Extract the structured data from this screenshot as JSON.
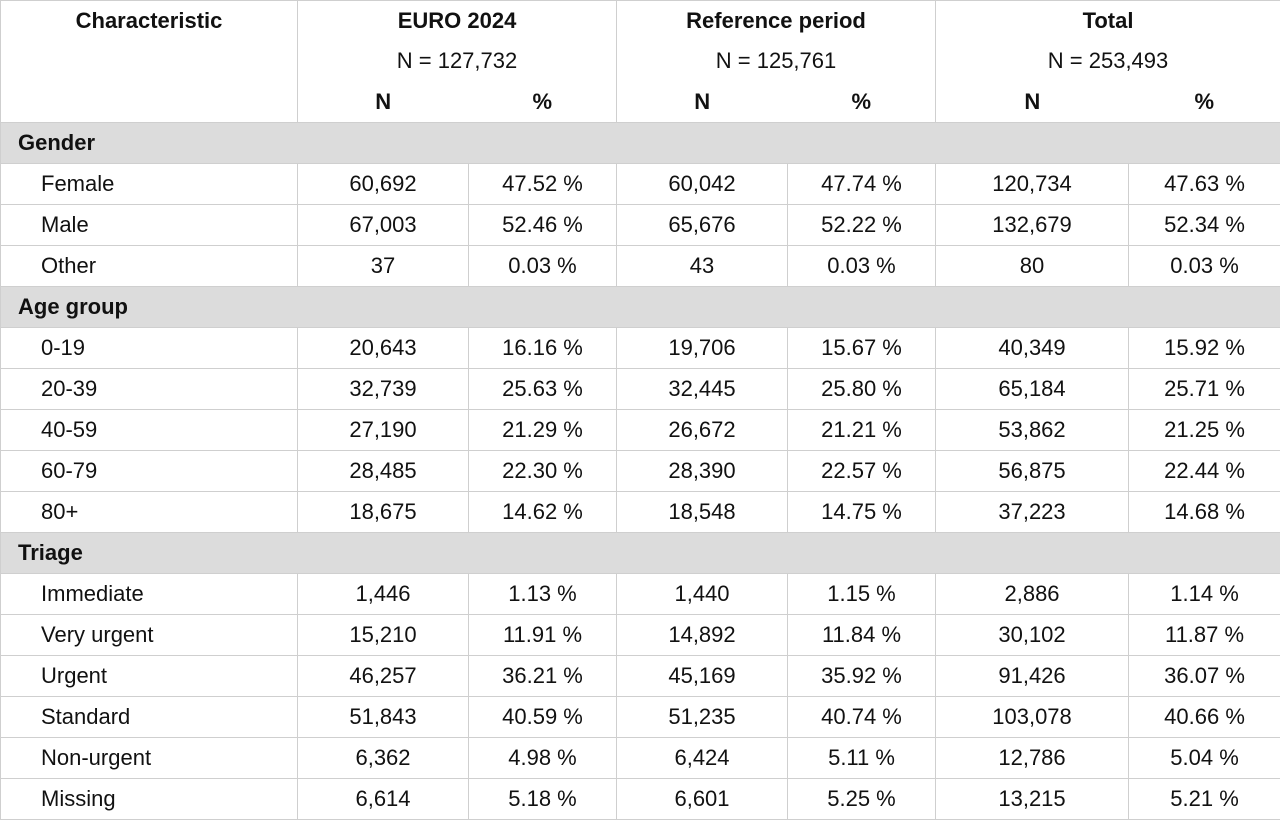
{
  "header": {
    "characteristic": "Characteristic",
    "groups": [
      {
        "title": "EURO 2024",
        "n": "N = 127,732"
      },
      {
        "title": "Reference period",
        "n": "N = 125,761"
      },
      {
        "title": "Total",
        "n": "N = 253,493"
      }
    ],
    "n_label": "N",
    "pct_label": "%"
  },
  "sections": [
    {
      "title": "Gender",
      "rows": [
        {
          "label": "Female",
          "values": [
            "60,692",
            "47.52 %",
            "60,042",
            "47.74 %",
            "120,734",
            "47.63 %"
          ]
        },
        {
          "label": "Male",
          "values": [
            "67,003",
            "52.46 %",
            "65,676",
            "52.22 %",
            "132,679",
            "52.34 %"
          ]
        },
        {
          "label": "Other",
          "values": [
            "37",
            "0.03 %",
            "43",
            "0.03 %",
            "80",
            "0.03 %"
          ]
        }
      ]
    },
    {
      "title": "Age group",
      "rows": [
        {
          "label": "0-19",
          "values": [
            "20,643",
            "16.16 %",
            "19,706",
            "15.67 %",
            "40,349",
            "15.92 %"
          ]
        },
        {
          "label": "20-39",
          "values": [
            "32,739",
            "25.63 %",
            "32,445",
            "25.80 %",
            "65,184",
            "25.71 %"
          ]
        },
        {
          "label": "40-59",
          "values": [
            "27,190",
            "21.29 %",
            "26,672",
            "21.21 %",
            "53,862",
            "21.25 %"
          ]
        },
        {
          "label": "60-79",
          "values": [
            "28,485",
            "22.30 %",
            "28,390",
            "22.57 %",
            "56,875",
            "22.44 %"
          ]
        },
        {
          "label": "80+",
          "values": [
            "18,675",
            "14.62 %",
            "18,548",
            "14.75 %",
            "37,223",
            "14.68 %"
          ]
        }
      ]
    },
    {
      "title": "Triage",
      "rows": [
        {
          "label": "Immediate",
          "values": [
            "1,446",
            "1.13 %",
            "1,440",
            "1.15 %",
            "2,886",
            "1.14 %"
          ]
        },
        {
          "label": "Very urgent",
          "values": [
            "15,210",
            "11.91 %",
            "14,892",
            "11.84 %",
            "30,102",
            "11.87 %"
          ]
        },
        {
          "label": "Urgent",
          "values": [
            "46,257",
            "36.21 %",
            "45,169",
            "35.92 %",
            "91,426",
            "36.07 %"
          ]
        },
        {
          "label": "Standard",
          "values": [
            "51,843",
            "40.59 %",
            "51,235",
            "40.74 %",
            "103,078",
            "40.66 %"
          ]
        },
        {
          "label": "Non-urgent",
          "values": [
            "6,362",
            "4.98 %",
            "6,424",
            "5.11 %",
            "12,786",
            "5.04 %"
          ]
        },
        {
          "label": "Missing",
          "values": [
            "6,614",
            "5.18 %",
            "6,601",
            "5.25 %",
            "13,215",
            "5.21 %"
          ]
        }
      ]
    }
  ]
}
